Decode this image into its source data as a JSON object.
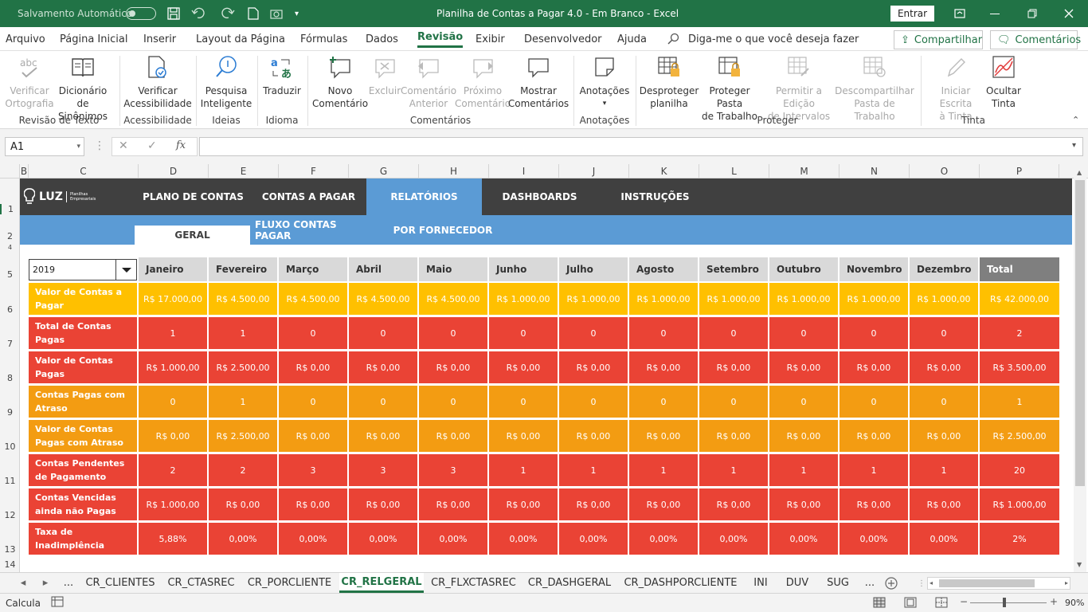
{
  "titlebar": {
    "autosave_label": "Salvamento Automático",
    "doc_title": "Planilha de Contas a Pagar 4.0 - Em Branco  -  Excel",
    "signin": "Entrar"
  },
  "menu": {
    "items": [
      "Arquivo",
      "Página Inicial",
      "Inserir",
      "Layout da Página",
      "Fórmulas",
      "Dados",
      "Revisão",
      "Exibir",
      "Desenvolvedor",
      "Ajuda"
    ],
    "active": "Revisão",
    "tellme": "Diga-me o que você deseja fazer",
    "share": "Compartilhar",
    "comments": "Comentários"
  },
  "ribbon": {
    "buttons": [
      {
        "line1": "Verificar",
        "line2": "Ortografia"
      },
      {
        "line1": "Dicionário de",
        "line2": "Sinônimos"
      },
      {
        "line1": "Verificar",
        "line2": "Acessibilidade"
      },
      {
        "line1": "Pesquisa",
        "line2": "Inteligente"
      },
      {
        "line1": "Traduzir",
        "line2": ""
      },
      {
        "line1": "Novo",
        "line2": "Comentário"
      },
      {
        "line1": "Excluir",
        "line2": ""
      },
      {
        "line1": "Comentário",
        "line2": "Anterior"
      },
      {
        "line1": "Próximo",
        "line2": "Comentário"
      },
      {
        "line1": "Mostrar",
        "line2": "Comentários"
      },
      {
        "line1": "Anotações",
        "line2": ""
      },
      {
        "line1": "Desproteger",
        "line2": "planilha"
      },
      {
        "line1": "Proteger Pasta",
        "line2": "de Trabalho"
      },
      {
        "line1": "Permitir a Edição",
        "line2": "de Intervalos"
      },
      {
        "line1": "Descompartilhar",
        "line2": "Pasta de Trabalho"
      },
      {
        "line1": "Iniciar Escrita",
        "line2": "à Tinta"
      },
      {
        "line1": "Ocultar",
        "line2": "Tinta"
      }
    ],
    "groups": [
      "Revisão de Texto",
      "Acessibilidade",
      "Ideias",
      "Idioma",
      "Comentários",
      "Anotações",
      "Proteger",
      "Tinta"
    ]
  },
  "formula": {
    "namebox": "A1",
    "fx": "fx",
    "content": ""
  },
  "columns": [
    "B",
    "C",
    "D",
    "E",
    "F",
    "G",
    "H",
    "I",
    "J",
    "K",
    "L",
    "M",
    "N",
    "O",
    "P"
  ],
  "rows": [
    "1",
    "2",
    "4",
    "5",
    "6",
    "7",
    "8",
    "9",
    "10",
    "11",
    "12",
    "13",
    "14"
  ],
  "sheet": {
    "brand": "LUZ",
    "brand_sub1": "Planilhas",
    "brand_sub2": "Empresariais",
    "nav": [
      "PLANO DE CONTAS",
      "CONTAS A PAGAR",
      "RELATÓRIOS",
      "DASHBOARDS",
      "INSTRUÇÕES"
    ],
    "subnav": [
      "GERAL",
      "FLUXO CONTAS PAGAR",
      "POR FORNECEDOR"
    ],
    "year": "2019",
    "months": [
      "Janeiro",
      "Fevereiro",
      "Março",
      "Abril",
      "Maio",
      "Junho",
      "Julho",
      "Agosto",
      "Setembro",
      "Outubro",
      "Novembro",
      "Dezembro",
      "Total"
    ],
    "rows": [
      {
        "label": "Valor de Contas a Pagar",
        "color": "#ffc000",
        "values": [
          "R$ 17.000,00",
          "R$ 4.500,00",
          "R$ 4.500,00",
          "R$ 4.500,00",
          "R$ 4.500,00",
          "R$ 1.000,00",
          "R$ 1.000,00",
          "R$ 1.000,00",
          "R$ 1.000,00",
          "R$ 1.000,00",
          "R$ 1.000,00",
          "R$ 1.000,00",
          "R$ 42.000,00"
        ]
      },
      {
        "label": "Total de Contas Pagas",
        "color": "#ea4335",
        "values": [
          "1",
          "1",
          "0",
          "0",
          "0",
          "0",
          "0",
          "0",
          "0",
          "0",
          "0",
          "0",
          "2"
        ]
      },
      {
        "label": "Valor de Contas Pagas",
        "color": "#ea4335",
        "values": [
          "R$ 1.000,00",
          "R$ 2.500,00",
          "R$ 0,00",
          "R$ 0,00",
          "R$ 0,00",
          "R$ 0,00",
          "R$ 0,00",
          "R$ 0,00",
          "R$ 0,00",
          "R$ 0,00",
          "R$ 0,00",
          "R$ 0,00",
          "R$ 3.500,00"
        ]
      },
      {
        "label": "Contas Pagas com Atraso",
        "color": "#f39c12",
        "values": [
          "0",
          "1",
          "0",
          "0",
          "0",
          "0",
          "0",
          "0",
          "0",
          "0",
          "0",
          "0",
          "1"
        ]
      },
      {
        "label": "Valor de Contas Pagas com Atraso",
        "color": "#f39c12",
        "values": [
          "R$ 0,00",
          "R$ 2.500,00",
          "R$ 0,00",
          "R$ 0,00",
          "R$ 0,00",
          "R$ 0,00",
          "R$ 0,00",
          "R$ 0,00",
          "R$ 0,00",
          "R$ 0,00",
          "R$ 0,00",
          "R$ 0,00",
          "R$ 2.500,00"
        ]
      },
      {
        "label": "Contas Pendentes de Pagamento",
        "color": "#ea4335",
        "values": [
          "2",
          "2",
          "3",
          "3",
          "3",
          "1",
          "1",
          "1",
          "1",
          "1",
          "1",
          "1",
          "20"
        ]
      },
      {
        "label": "Contas Vencidas ainda não Pagas",
        "color": "#ea4335",
        "values": [
          "R$ 1.000,00",
          "R$ 0,00",
          "R$ 0,00",
          "R$ 0,00",
          "R$ 0,00",
          "R$ 0,00",
          "R$ 0,00",
          "R$ 0,00",
          "R$ 0,00",
          "R$ 0,00",
          "R$ 0,00",
          "R$ 0,00",
          "R$ 1.000,00"
        ]
      },
      {
        "label": "Taxa de Inadimplência",
        "color": "#ea4335",
        "values": [
          "5,88%",
          "0,00%",
          "0,00%",
          "0,00%",
          "0,00%",
          "0,00%",
          "0,00%",
          "0,00%",
          "0,00%",
          "0,00%",
          "0,00%",
          "0,00%",
          "2%"
        ]
      }
    ]
  },
  "tabs": {
    "ellipsis": "...",
    "items": [
      "CR_CLIENTES",
      "CR_CTASREC",
      "CR_PORCLIENTE",
      "CR_RELGERAL",
      "CR_FLXCTASREC",
      "CR_DASHGERAL",
      "CR_DASHPORCLIENTE",
      "INI",
      "DUV",
      "SUG"
    ],
    "active": "CR_RELGERAL"
  },
  "status": {
    "mode": "Calcula",
    "zoom": "90%"
  },
  "colors": {
    "excel_green": "#217346",
    "nav_dark": "#404040",
    "nav_blue": "#5b9bd5"
  }
}
